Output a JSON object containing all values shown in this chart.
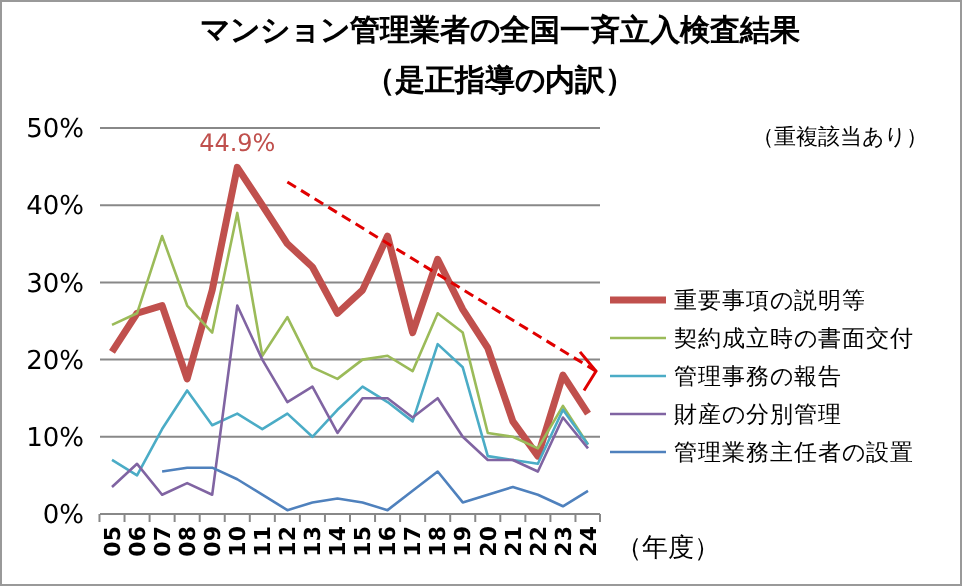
{
  "chart_data": {
    "type": "line",
    "title": "マンション管理業者の全国一斉立入検査結果",
    "subtitle": "（是正指導の内訳）",
    "xlabel": "（年度）",
    "categories": [
      "05",
      "06",
      "07",
      "08",
      "09",
      "10",
      "11",
      "12",
      "13",
      "14",
      "15",
      "16",
      "17",
      "18",
      "19",
      "20",
      "21",
      "22",
      "23",
      "24"
    ],
    "series": [
      {
        "name": "重要事項の説明等",
        "color": "#c0504d",
        "values": [
          21,
          26,
          27,
          17.5,
          29,
          44.9,
          40,
          35,
          32,
          26,
          29,
          36,
          23.5,
          33,
          26.5,
          21.5,
          12,
          7.5,
          18,
          13
        ]
      },
      {
        "name": "契約成立時の書面交付",
        "color": "#9bbb59",
        "values": [
          24.5,
          26,
          36,
          27,
          23.5,
          39,
          20.5,
          25.5,
          19,
          17.5,
          20,
          20.5,
          18.5,
          26,
          23.5,
          10.5,
          10,
          8.5,
          14,
          9
        ]
      },
      {
        "name": "管理事務の報告",
        "color": "#4bacc6",
        "values": [
          7,
          5,
          11,
          16,
          11.5,
          13,
          11,
          13,
          10,
          13.5,
          16.5,
          14.5,
          12,
          22,
          19,
          7.5,
          7,
          6.5,
          13.5,
          9
        ]
      },
      {
        "name": "財産の分別管理",
        "color": "#8064a2",
        "values": [
          3.5,
          6.5,
          2.5,
          4,
          2.5,
          27,
          20,
          14.5,
          16.5,
          10.5,
          15,
          15,
          12.5,
          15,
          10,
          7,
          7,
          5.5,
          12.5,
          8.5
        ]
      },
      {
        "name": "管理業務主任者の設置",
        "color": "#4f81bd",
        "values": [
          null,
          null,
          5.5,
          6,
          6,
          4.5,
          2.5,
          0.5,
          1.5,
          2,
          1.5,
          0.5,
          3,
          5.5,
          1.5,
          2.5,
          3.5,
          2.5,
          1,
          3
        ]
      }
    ],
    "ylim": [
      0,
      50
    ],
    "yticks": [
      {
        "value": 0,
        "label": "0%"
      },
      {
        "value": 10,
        "label": "10%"
      },
      {
        "value": 20,
        "label": "20%"
      },
      {
        "value": 30,
        "label": "30%"
      },
      {
        "value": 40,
        "label": "40%"
      },
      {
        "value": 50,
        "label": "50%"
      }
    ],
    "grid": "y",
    "legend": "right",
    "marker": "none",
    "line_style": "solid",
    "annotations": [
      {
        "text": "44.9%",
        "x": "10",
        "y": 44.9
      },
      "（重複該当あり）"
    ]
  }
}
